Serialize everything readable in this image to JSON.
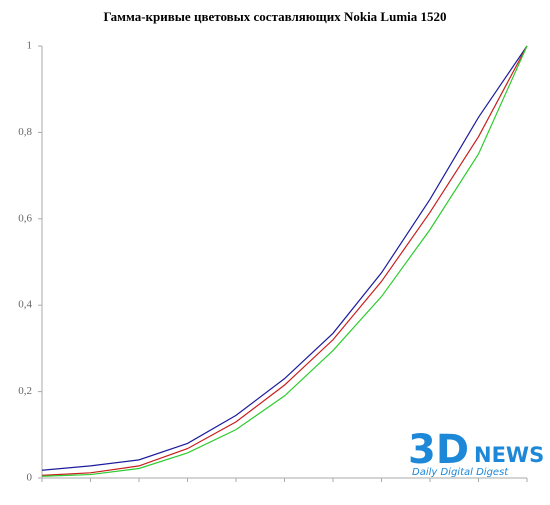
{
  "chart_data": {
    "type": "line",
    "title": "Гамма-кривые цветовых составляющих Nokia Lumia 1520",
    "categories": [
      null,
      null,
      null,
      null,
      null,
      null,
      null,
      null,
      null,
      null,
      null
    ],
    "series": [
      {
        "color": "#1c1c9e",
        "values": [
          0.018,
          0.028,
          0.042,
          0.08,
          0.145,
          0.23,
          0.335,
          0.475,
          0.645,
          0.835,
          1
        ]
      },
      {
        "color": "#c81e1e",
        "values": [
          0.006,
          0.012,
          0.028,
          0.068,
          0.13,
          0.215,
          0.32,
          0.455,
          0.615,
          0.79,
          1
        ]
      },
      {
        "color": "#2ecc2e",
        "values": [
          0.004,
          0.008,
          0.022,
          0.058,
          0.112,
          0.19,
          0.295,
          0.42,
          0.575,
          0.75,
          1
        ]
      }
    ],
    "ylim": [
      0,
      1
    ],
    "yticks": [
      0,
      {
        "value": 0.2,
        "label": "0,2"
      },
      {
        "value": 0.4,
        "label": "0,4"
      },
      {
        "value": 0.6,
        "label": "0,6"
      },
      {
        "value": 0.8,
        "label": "0,8"
      },
      1
    ],
    "grid": false,
    "watermark": {
      "big": "3D",
      "word": "NEWS",
      "tagline": "Daily Digital Digest"
    }
  }
}
